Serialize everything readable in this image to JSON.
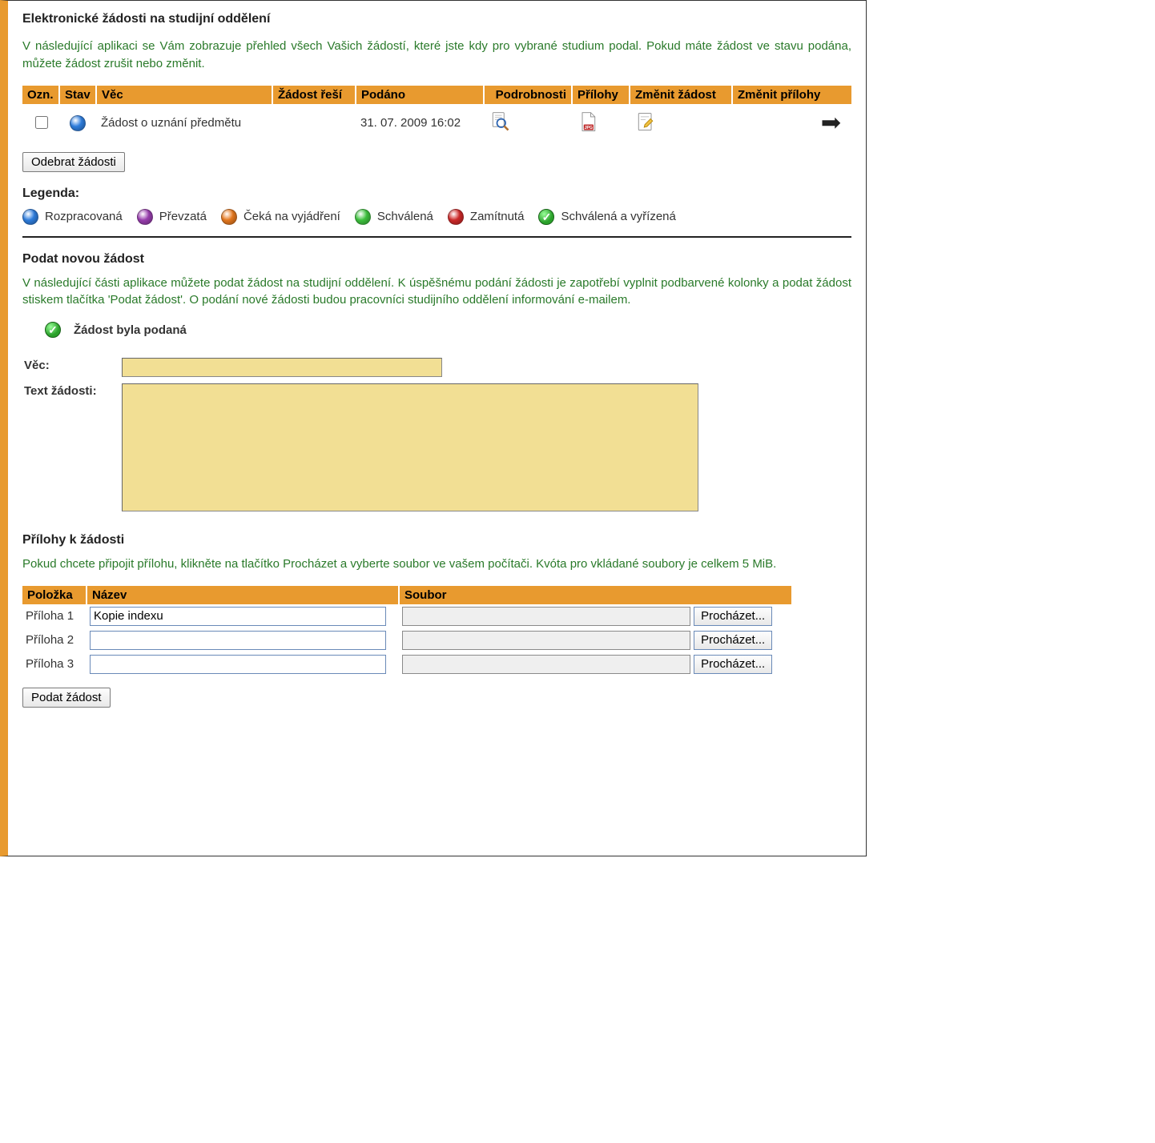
{
  "heading": "Elektronické žádosti na studijní oddělení",
  "intro1": "V následující aplikaci se Vám zobrazuje přehled všech Vašich žádostí, které jste kdy pro vybrané studium podal. Pokud máte žádost ve stavu podána, můžete žádost zrušit nebo změnit.",
  "table": {
    "headers": {
      "ozn": "Ozn.",
      "stav": "Stav",
      "vec": "Věc",
      "resi": "Žádost řeší",
      "podano": "Podáno",
      "podrobnosti": "Podrobnosti",
      "prilohy": "Přílohy",
      "zmenit_zadost": "Změnit žádost",
      "zmenit_prilohy": "Změnit přílohy"
    },
    "row": {
      "status_color": "#2f7fe0",
      "vec": "Žádost o uznání předmětu",
      "resi": "",
      "podano": "31. 07. 2009 16:02"
    }
  },
  "remove_btn": "Odebrat žádosti",
  "legend_title": "Legenda:",
  "legend": [
    {
      "color": "#2f7fe0",
      "label": "Rozpracovaná",
      "check": false
    },
    {
      "color": "#9a3fb0",
      "label": "Převzatá",
      "check": false
    },
    {
      "color": "#e87a1f",
      "label": "Čeká na vyjádření",
      "check": false
    },
    {
      "color": "#3fc43f",
      "label": "Schválená",
      "check": false
    },
    {
      "color": "#d02a2a",
      "label": "Zamítnutá",
      "check": false
    },
    {
      "color": "#2aa02a",
      "label": "Schválená a vyřízená",
      "check": true
    }
  ],
  "newreq": {
    "heading": "Podat novou žádost",
    "intro": "V následující části aplikace můžete podat žádost na studijní oddělení. K úspěšnému podání žádosti je zapotřebí vyplnit podbarvené kolonky a podat žádost stiskem tlačítka 'Podat žádost'. O podání nové žádosti budou pracovníci studijního oddělení informování e-mailem.",
    "success": "Žádost byla podaná",
    "vec_label": "Věc:",
    "text_label": "Text žádosti:",
    "vec_value": "",
    "text_value": ""
  },
  "attachments": {
    "heading": "Přílohy k žádosti",
    "intro": "Pokud chcete připojit přílohu, klikněte na tlačítko Procházet a vyberte soubor ve vašem počítači. Kvóta pro vkládané soubory je celkem 5 MiB.",
    "headers": {
      "polozka": "Položka",
      "nazev": "Název",
      "soubor": "Soubor"
    },
    "browse": "Procházet...",
    "rows": [
      {
        "polozka": "Příloha 1",
        "nazev": "Kopie indexu",
        "soubor": ""
      },
      {
        "polozka": "Příloha 2",
        "nazev": "",
        "soubor": ""
      },
      {
        "polozka": "Příloha 3",
        "nazev": "",
        "soubor": ""
      }
    ]
  },
  "submit_btn": "Podat žádost"
}
